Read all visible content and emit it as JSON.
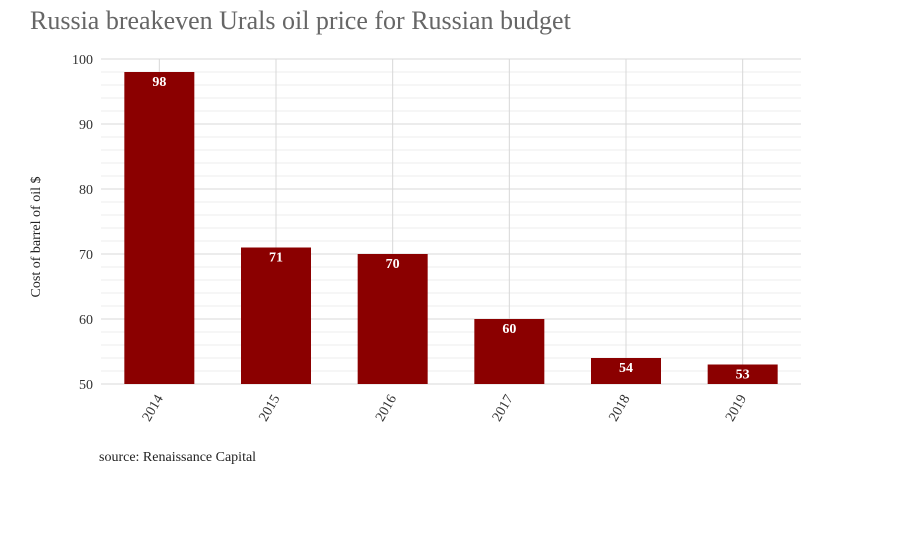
{
  "chart_data": {
    "type": "bar",
    "title": "Russia breakeven Urals oil price for Russian budget",
    "xlabel": "",
    "ylabel": "Cost of barrel of oil $",
    "categories": [
      "2014",
      "2015",
      "2016",
      "2017",
      "2018",
      "2019"
    ],
    "values": [
      98,
      71,
      70,
      60,
      54,
      53
    ],
    "data_labels": [
      "98",
      "71",
      "70",
      "60",
      "54",
      "53"
    ],
    "ylim": [
      50,
      100
    ],
    "yticks": [
      50,
      60,
      70,
      80,
      90,
      100
    ],
    "ytick_labels": [
      "50",
      "60",
      "70",
      "80",
      "90",
      "100"
    ],
    "minor_grid_step": 2,
    "grid": true,
    "legend": "none",
    "bar_color": "#8b0000",
    "grid_color": "#d8d8d8",
    "source_note": "source: Renaissance Capital"
  }
}
